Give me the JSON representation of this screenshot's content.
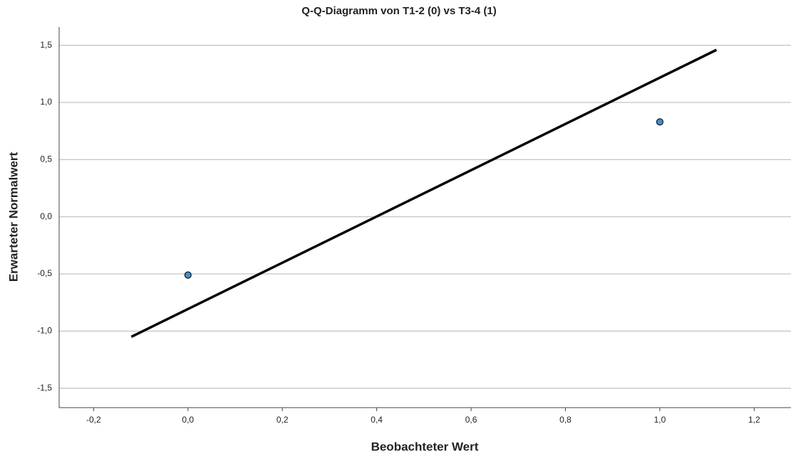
{
  "chart_data": {
    "type": "scatter",
    "title": "Q-Q-Diagramm von T1-2 (0) vs T3-4 (1)",
    "x_label": "Beobachteter Wert",
    "y_label": "Erwarteter Normalwert",
    "series": [
      {
        "color": "#3d8fd6",
        "x": [
          0,
          1
        ],
        "values": [
          -0.51,
          0.83
        ]
      }
    ],
    "reference_line": {
      "color": "#000000",
      "x": [
        -0.12,
        1.12
      ],
      "values": [
        -1.05,
        1.46
      ]
    },
    "xlim": [
      -0.273,
      1.278
    ],
    "ylim": [
      -1.67,
      1.66
    ],
    "xticks": [
      {
        "value": -0.2,
        "label": "-0,2"
      },
      {
        "value": 0,
        "label": "0,0"
      },
      {
        "value": 0.2,
        "label": "0,2"
      },
      {
        "value": 0.4,
        "label": "0,4"
      },
      {
        "value": 0.6,
        "label": "0,6"
      },
      {
        "value": 0.8,
        "label": "0,8"
      },
      {
        "value": 1,
        "label": "1,0"
      },
      {
        "value": 1.2,
        "label": "1,2"
      }
    ],
    "yticks": [
      {
        "value": -1.5,
        "label": "-1,5"
      },
      {
        "value": -1,
        "label": "-1,0"
      },
      {
        "value": -0.5,
        "label": "-0,5"
      },
      {
        "value": 0,
        "label": "0,0"
      },
      {
        "value": 0.5,
        "label": "0,5"
      },
      {
        "value": 1,
        "label": "1,0"
      },
      {
        "value": 1.5,
        "label": "1,5"
      }
    ],
    "grid": true
  }
}
